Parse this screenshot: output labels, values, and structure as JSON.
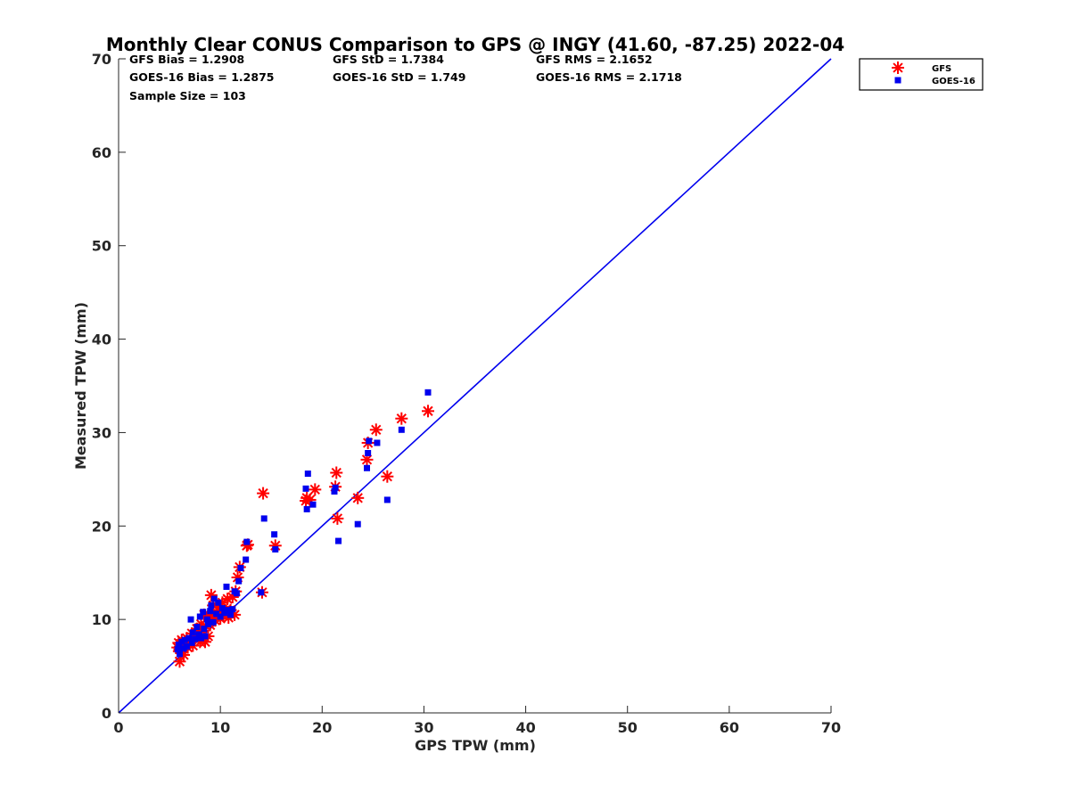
{
  "chart_data": {
    "type": "scatter",
    "title": "Monthly Clear CONUS Comparison to GPS @ INGY (41.60, -87.25) 2022-04",
    "xlabel": "GPS TPW (mm)",
    "ylabel": "Measured TPW (mm)",
    "xlim": [
      0,
      70
    ],
    "ylim": [
      0,
      70
    ],
    "xticks": [
      "0",
      "10",
      "20",
      "30",
      "40",
      "50",
      "60",
      "70"
    ],
    "yticks": [
      "0",
      "10",
      "20",
      "30",
      "40",
      "50",
      "60",
      "70"
    ],
    "grid": false,
    "legend_position": "outside-top-right",
    "stats": [
      [
        "GFS Bias = 1.2908",
        "GFS StD = 1.7384",
        "GFS RMS = 2.1652"
      ],
      [
        "GOES-16 Bias = 1.2875",
        "GOES-16 StD = 1.749",
        "GOES-16 RMS = 2.1718"
      ],
      [
        "Sample Size = 103"
      ]
    ],
    "reference_line": {
      "x": [
        0,
        70
      ],
      "y": [
        0,
        70
      ],
      "color": "#0000ee"
    },
    "series": [
      {
        "name": "GFS",
        "marker": "asterisk",
        "color": "#ff0000",
        "points": [
          [
            5.8,
            7.0
          ],
          [
            5.9,
            7.5
          ],
          [
            6.0,
            5.5
          ],
          [
            6.0,
            6.8
          ],
          [
            6.2,
            7.8
          ],
          [
            6.4,
            6.2
          ],
          [
            6.5,
            7.3
          ],
          [
            6.7,
            8.0
          ],
          [
            6.8,
            7.0
          ],
          [
            7.0,
            7.5
          ],
          [
            7.2,
            8.5
          ],
          [
            7.3,
            7.2
          ],
          [
            7.5,
            8.0
          ],
          [
            7.7,
            9.0
          ],
          [
            7.8,
            8.2
          ],
          [
            8.0,
            7.6
          ],
          [
            8.1,
            9.5
          ],
          [
            8.2,
            8.8
          ],
          [
            8.4,
            10.5
          ],
          [
            8.5,
            7.6
          ],
          [
            8.6,
            9.3
          ],
          [
            8.8,
            8.2
          ],
          [
            8.9,
            10.2
          ],
          [
            9.0,
            9.4
          ],
          [
            9.1,
            12.6
          ],
          [
            9.2,
            10.6
          ],
          [
            9.3,
            11.5
          ],
          [
            9.5,
            9.9
          ],
          [
            9.6,
            10.8
          ],
          [
            9.8,
            11.3
          ],
          [
            10.0,
            10.1
          ],
          [
            10.2,
            11.8
          ],
          [
            10.3,
            10.4
          ],
          [
            10.5,
            11.0
          ],
          [
            10.7,
            12.2
          ],
          [
            10.8,
            10.2
          ],
          [
            11.0,
            11.0
          ],
          [
            11.2,
            12.4
          ],
          [
            11.4,
            10.5
          ],
          [
            11.5,
            13.0
          ],
          [
            11.7,
            14.5
          ],
          [
            11.9,
            15.6
          ],
          [
            12.6,
            17.9
          ],
          [
            12.7,
            18.0
          ],
          [
            14.1,
            12.9
          ],
          [
            14.2,
            23.5
          ],
          [
            15.4,
            17.9
          ],
          [
            18.4,
            22.7
          ],
          [
            18.5,
            23.0
          ],
          [
            18.8,
            22.8
          ],
          [
            19.3,
            23.9
          ],
          [
            21.3,
            24.2
          ],
          [
            21.4,
            25.7
          ],
          [
            21.5,
            20.8
          ],
          [
            23.5,
            23.0
          ],
          [
            24.4,
            27.1
          ],
          [
            24.5,
            28.9
          ],
          [
            25.3,
            30.3
          ],
          [
            26.4,
            25.3
          ],
          [
            27.8,
            31.5
          ],
          [
            30.4,
            32.3
          ]
        ]
      },
      {
        "name": "GOES-16",
        "marker": "square",
        "color": "#0000ee",
        "points": [
          [
            5.8,
            6.8
          ],
          [
            5.9,
            7.3
          ],
          [
            6.0,
            6.3
          ],
          [
            6.2,
            7.6
          ],
          [
            6.4,
            6.9
          ],
          [
            6.5,
            7.8
          ],
          [
            6.7,
            7.1
          ],
          [
            6.9,
            8.0
          ],
          [
            7.1,
            10.0
          ],
          [
            7.2,
            7.5
          ],
          [
            7.3,
            8.6
          ],
          [
            7.5,
            7.9
          ],
          [
            7.7,
            9.2
          ],
          [
            7.9,
            8.4
          ],
          [
            8.0,
            10.3
          ],
          [
            8.1,
            8.0
          ],
          [
            8.3,
            10.8
          ],
          [
            8.4,
            9.0
          ],
          [
            8.5,
            8.2
          ],
          [
            8.7,
            10.0
          ],
          [
            8.8,
            9.5
          ],
          [
            9.0,
            10.9
          ],
          [
            9.1,
            11.5
          ],
          [
            9.3,
            9.7
          ],
          [
            9.4,
            12.2
          ],
          [
            9.6,
            10.6
          ],
          [
            9.8,
            11.8
          ],
          [
            10.0,
            10.3
          ],
          [
            10.2,
            11.2
          ],
          [
            10.4,
            10.7
          ],
          [
            10.6,
            13.5
          ],
          [
            10.8,
            11.0
          ],
          [
            11.0,
            10.5
          ],
          [
            11.2,
            11.1
          ],
          [
            11.4,
            13.0
          ],
          [
            11.6,
            12.8
          ],
          [
            11.8,
            14.1
          ],
          [
            12.0,
            15.5
          ],
          [
            12.5,
            16.4
          ],
          [
            12.6,
            18.3
          ],
          [
            14.0,
            12.9
          ],
          [
            14.3,
            20.8
          ],
          [
            15.3,
            19.1
          ],
          [
            15.4,
            17.5
          ],
          [
            18.4,
            24.0
          ],
          [
            18.5,
            21.8
          ],
          [
            18.6,
            25.6
          ],
          [
            19.1,
            22.3
          ],
          [
            21.2,
            23.7
          ],
          [
            21.3,
            24.1
          ],
          [
            21.6,
            18.4
          ],
          [
            23.5,
            20.2
          ],
          [
            24.4,
            26.2
          ],
          [
            24.5,
            27.8
          ],
          [
            24.6,
            29.1
          ],
          [
            25.4,
            28.9
          ],
          [
            26.4,
            22.8
          ],
          [
            27.8,
            30.3
          ],
          [
            30.4,
            34.3
          ]
        ]
      }
    ]
  }
}
